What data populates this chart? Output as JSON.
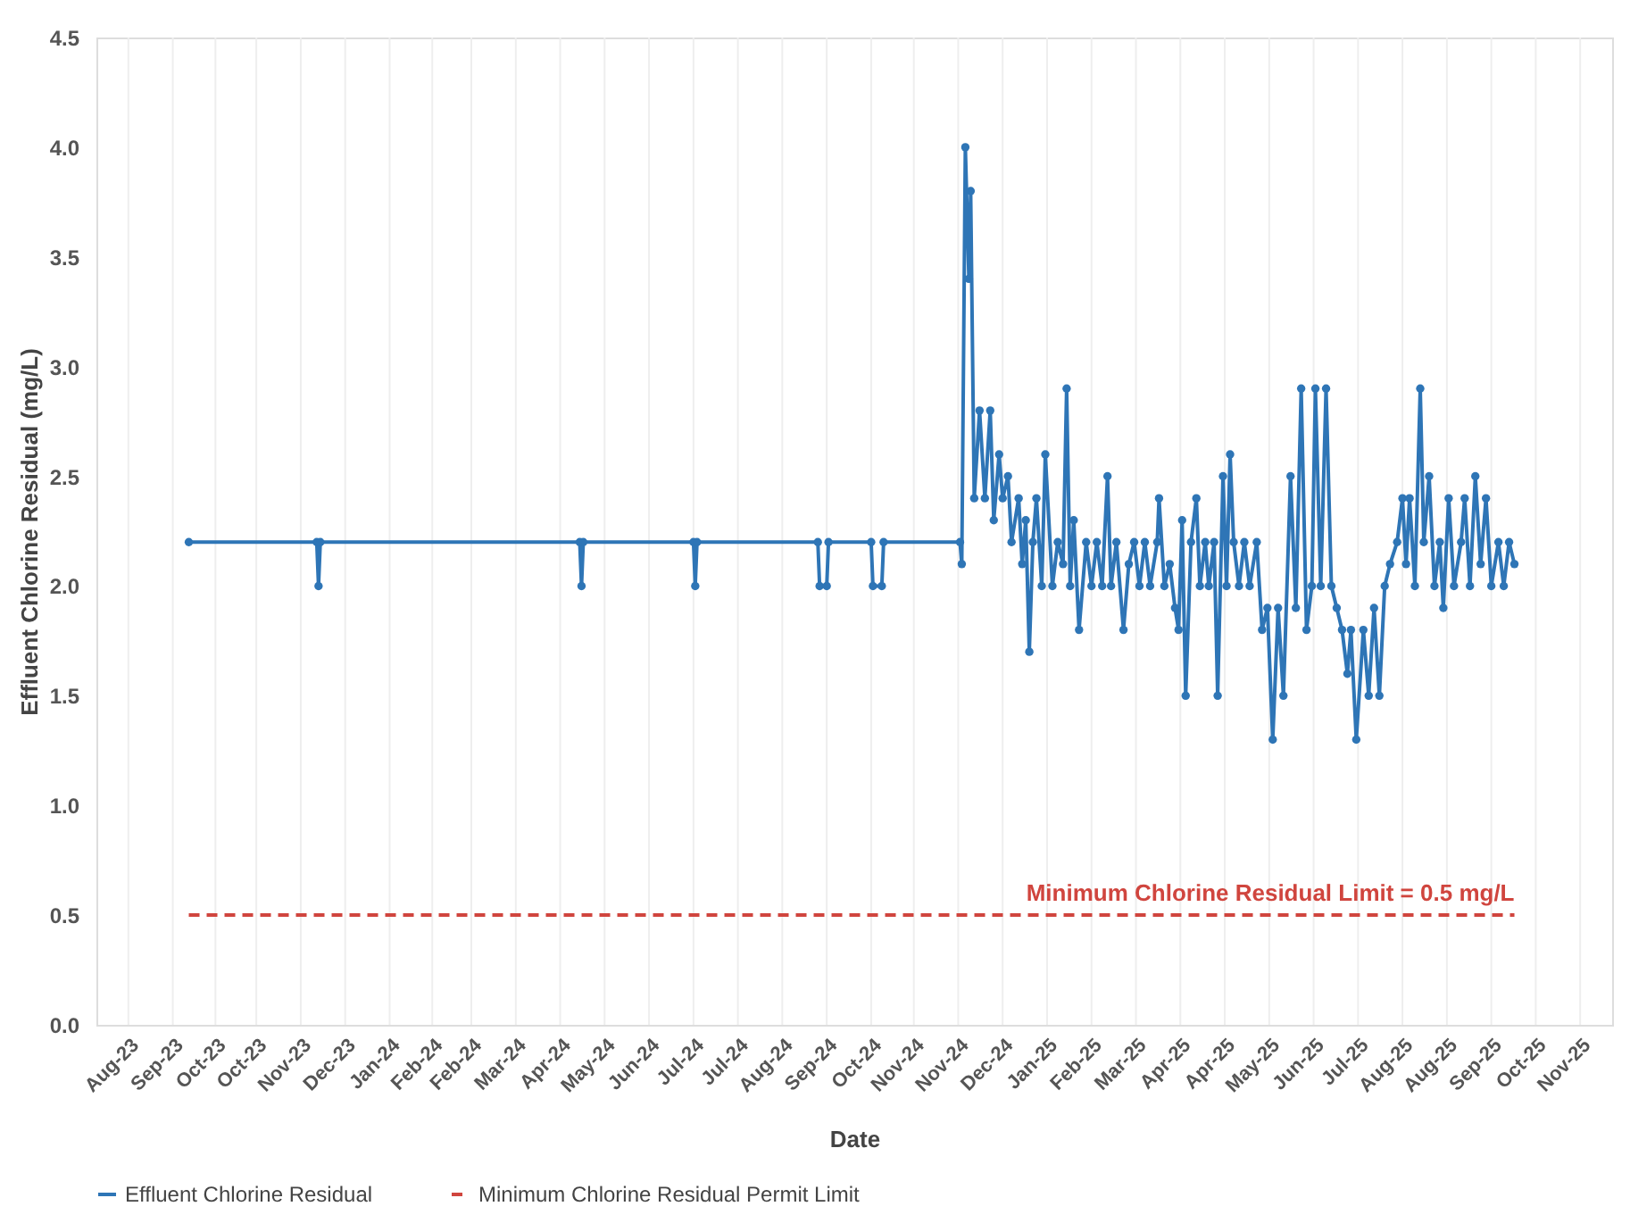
{
  "chart_data": {
    "type": "line",
    "xlabel": "Date",
    "ylabel": "Effluent Chlorine Residual (mg/L)",
    "xlim": [
      "2023-08-02",
      "2025-12-02"
    ],
    "ylim": [
      0,
      4.5
    ],
    "yticks": [
      {
        "value": 0,
        "label": "0.0"
      },
      {
        "value": 0.5,
        "label": "0.5"
      },
      {
        "value": 1,
        "label": "1.0"
      },
      {
        "value": 1.5,
        "label": "1.5"
      },
      {
        "value": 2,
        "label": "2.0"
      },
      {
        "value": 2.5,
        "label": "2.5"
      },
      {
        "value": 3,
        "label": "3.0"
      },
      {
        "value": 3.5,
        "label": "3.5"
      },
      {
        "value": 4,
        "label": "4.0"
      },
      {
        "value": 4.5,
        "label": "4.5"
      }
    ],
    "xticks": [
      {
        "value": "2023-08-20",
        "label": "Aug-23"
      },
      {
        "value": "2023-09-14",
        "label": "Sep-23"
      },
      {
        "value": "2023-10-08",
        "label": "Oct-23"
      },
      {
        "value": "2023-10-31",
        "label": "Oct-23"
      },
      {
        "value": "2023-11-25",
        "label": "Nov-23"
      },
      {
        "value": "2023-12-20",
        "label": "Dec-23"
      },
      {
        "value": "2024-01-14",
        "label": "Jan-24"
      },
      {
        "value": "2024-02-07",
        "label": "Feb-24"
      },
      {
        "value": "2024-02-29",
        "label": "Feb-24"
      },
      {
        "value": "2024-03-25",
        "label": "Mar-24"
      },
      {
        "value": "2024-04-19",
        "label": "Apr-24"
      },
      {
        "value": "2024-05-14",
        "label": "May-24"
      },
      {
        "value": "2024-06-08",
        "label": "Jun-24"
      },
      {
        "value": "2024-07-03",
        "label": "Jul-24"
      },
      {
        "value": "2024-07-28",
        "label": "Jul-24"
      },
      {
        "value": "2024-08-22",
        "label": "Aug-24"
      },
      {
        "value": "2024-09-16",
        "label": "Sep-24"
      },
      {
        "value": "2024-10-11",
        "label": "Oct-24"
      },
      {
        "value": "2024-11-04",
        "label": "Nov-24"
      },
      {
        "value": "2024-11-29",
        "label": "Nov-24"
      },
      {
        "value": "2024-12-24",
        "label": "Dec-24"
      },
      {
        "value": "2025-01-18",
        "label": "Jan-25"
      },
      {
        "value": "2025-02-12",
        "label": "Feb-25"
      },
      {
        "value": "2025-03-09",
        "label": "Mar-25"
      },
      {
        "value": "2025-04-03",
        "label": "Apr-25"
      },
      {
        "value": "2025-04-28",
        "label": "Apr-25"
      },
      {
        "value": "2025-05-23",
        "label": "May-25"
      },
      {
        "value": "2025-06-17",
        "label": "Jun-25"
      },
      {
        "value": "2025-07-12",
        "label": "Jul-25"
      },
      {
        "value": "2025-08-06",
        "label": "Aug-25"
      },
      {
        "value": "2025-08-31",
        "label": "Aug-25"
      },
      {
        "value": "2025-09-25",
        "label": "Sep-25"
      },
      {
        "value": "2025-10-20",
        "label": "Oct-25"
      },
      {
        "value": "2025-11-14",
        "label": "Nov-25"
      }
    ],
    "grid": "x",
    "legend": "bottom",
    "series": [
      {
        "name": "Effluent Chlorine Residual",
        "color": "#2e75b6",
        "marker": "circle",
        "line_style": "solid",
        "x": [
          "2023-09-23",
          "2023-12-04",
          "2023-12-05",
          "2023-12-06",
          "2024-04-30",
          "2024-05-01",
          "2024-05-02",
          "2024-07-03",
          "2024-07-04",
          "2024-07-05",
          "2024-09-11",
          "2024-09-12",
          "2024-09-16",
          "2024-09-17",
          "2024-10-11",
          "2024-10-12",
          "2024-10-17",
          "2024-10-18",
          "2024-11-30",
          "2024-12-01",
          "2024-12-03",
          "2024-12-05",
          "2024-12-06",
          "2024-12-08",
          "2024-12-11",
          "2024-12-14",
          "2024-12-17",
          "2024-12-19",
          "2024-12-22",
          "2024-12-24",
          "2024-12-27",
          "2024-12-29",
          "2025-01-02",
          "2025-01-04",
          "2025-01-06",
          "2025-01-08",
          "2025-01-10",
          "2025-01-12",
          "2025-01-15",
          "2025-01-17",
          "2025-01-21",
          "2025-01-24",
          "2025-01-27",
          "2025-01-29",
          "2025-01-31",
          "2025-02-02",
          "2025-02-05",
          "2025-02-09",
          "2025-02-12",
          "2025-02-15",
          "2025-02-18",
          "2025-02-21",
          "2025-02-23",
          "2025-02-26",
          "2025-03-02",
          "2025-03-05",
          "2025-03-08",
          "2025-03-11",
          "2025-03-14",
          "2025-03-17",
          "2025-03-21",
          "2025-03-22",
          "2025-03-25",
          "2025-03-28",
          "2025-03-31",
          "2025-04-02",
          "2025-04-04",
          "2025-04-06",
          "2025-04-09",
          "2025-04-12",
          "2025-04-14",
          "2025-04-17",
          "2025-04-19",
          "2025-04-22",
          "2025-04-24",
          "2025-04-27",
          "2025-04-29",
          "2025-05-01",
          "2025-05-03",
          "2025-05-06",
          "2025-05-09",
          "2025-05-12",
          "2025-05-16",
          "2025-05-19",
          "2025-05-22",
          "2025-05-25",
          "2025-05-28",
          "2025-05-31",
          "2025-06-04",
          "2025-06-07",
          "2025-06-10",
          "2025-06-13",
          "2025-06-16",
          "2025-06-18",
          "2025-06-21",
          "2025-06-24",
          "2025-06-27",
          "2025-06-30",
          "2025-07-03",
          "2025-07-06",
          "2025-07-08",
          "2025-07-11",
          "2025-07-15",
          "2025-07-18",
          "2025-07-21",
          "2025-07-24",
          "2025-07-27",
          "2025-07-30",
          "2025-08-03",
          "2025-08-06",
          "2025-08-08",
          "2025-08-10",
          "2025-08-13",
          "2025-08-16",
          "2025-08-18",
          "2025-08-21",
          "2025-08-24",
          "2025-08-27",
          "2025-08-29",
          "2025-09-01",
          "2025-09-04",
          "2025-09-08",
          "2025-09-10",
          "2025-09-13",
          "2025-09-16",
          "2025-09-19",
          "2025-09-22",
          "2025-09-25",
          "2025-09-29",
          "2025-10-02",
          "2025-10-05",
          "2025-10-08"
        ],
        "values": [
          2.2,
          2.2,
          2.0,
          2.2,
          2.2,
          2.0,
          2.2,
          2.2,
          2.0,
          2.2,
          2.2,
          2.0,
          2.0,
          2.2,
          2.2,
          2.0,
          2.0,
          2.2,
          2.2,
          2.1,
          4.0,
          3.4,
          3.8,
          2.4,
          2.8,
          2.4,
          2.8,
          2.3,
          2.6,
          2.4,
          2.5,
          2.2,
          2.4,
          2.1,
          2.3,
          1.7,
          2.2,
          2.4,
          2.0,
          2.6,
          2.0,
          2.2,
          2.1,
          2.9,
          2.0,
          2.3,
          1.8,
          2.2,
          2.0,
          2.2,
          2.0,
          2.5,
          2.0,
          2.2,
          1.8,
          2.1,
          2.2,
          2.0,
          2.2,
          2.0,
          2.2,
          2.4,
          2.0,
          2.1,
          1.9,
          1.8,
          2.3,
          1.5,
          2.2,
          2.4,
          2.0,
          2.2,
          2.0,
          2.2,
          1.5,
          2.5,
          2.0,
          2.6,
          2.2,
          2.0,
          2.2,
          2.0,
          2.2,
          1.8,
          1.9,
          1.3,
          1.9,
          1.5,
          2.5,
          1.9,
          2.9,
          1.8,
          2.0,
          2.9,
          2.0,
          2.9,
          2.0,
          1.9,
          1.8,
          1.6,
          1.8,
          1.3,
          1.8,
          1.5,
          1.9,
          1.5,
          2.0,
          2.1,
          2.2,
          2.4,
          2.1,
          2.4,
          2.0,
          2.9,
          2.2,
          2.5,
          2.0,
          2.2,
          1.9,
          2.4,
          2.0,
          2.2,
          2.4,
          2.0,
          2.5,
          2.1,
          2.4,
          2.0,
          2.2,
          2.0,
          2.2,
          2.1
        ]
      },
      {
        "name": "Minimum Chlorine Residual Permit Limit",
        "color": "#d0453e",
        "marker": "none",
        "line_style": "dashed",
        "x": [
          "2023-09-23",
          "2025-10-08"
        ],
        "values": [
          0.5,
          0.5
        ]
      }
    ],
    "annotations": [
      {
        "text": "Minimum Chlorine Residual Limit = 0.5 mg/L",
        "x": "2025-10-08",
        "y": 0.5
      }
    ]
  }
}
